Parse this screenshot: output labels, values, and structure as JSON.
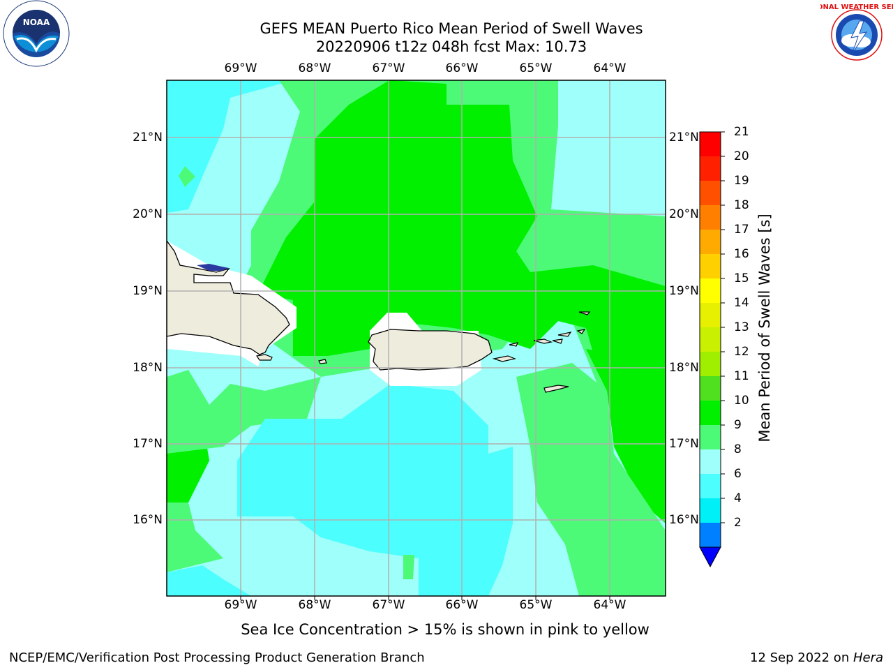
{
  "header": {
    "title_line1": "GEFS MEAN Puerto Rico Mean Period of Swell Waves",
    "title_line2": "20220906 t12z 048h fcst   Max: 10.73"
  },
  "logos": {
    "left": {
      "icon": "noaa-logo",
      "text": "NOAA"
    },
    "right": {
      "icon": "nws-logo",
      "text": "NATIONAL WEATHER SERVICE"
    }
  },
  "map": {
    "longitudes": [
      "69°W",
      "68°W",
      "67°W",
      "66°W",
      "65°W",
      "64°W"
    ],
    "latitudes": [
      "21°N",
      "20°N",
      "19°N",
      "18°N",
      "17°N",
      "16°N"
    ],
    "land_color": "#eeecdc",
    "grid_color": "#b0b0b0"
  },
  "colorbar": {
    "title": "Mean Period of Swell Waves [s]",
    "ticks": [
      "21",
      "20",
      "19",
      "18",
      "17",
      "16",
      "15",
      "14",
      "13",
      "12",
      "11",
      "10",
      "9",
      "8",
      "6",
      "4",
      "2"
    ],
    "levels": [
      {
        "color": "#ff0000"
      },
      {
        "color": "#ff2000"
      },
      {
        "color": "#ff5000"
      },
      {
        "color": "#ff8000"
      },
      {
        "color": "#ffaa00"
      },
      {
        "color": "#ffd000"
      },
      {
        "color": "#ffff00"
      },
      {
        "color": "#e6f000"
      },
      {
        "color": "#c8f000"
      },
      {
        "color": "#a0ee00"
      },
      {
        "color": "#50e020"
      },
      {
        "color": "#00f000"
      },
      {
        "color": "#4dfa78"
      },
      {
        "color": "#9ffffa"
      },
      {
        "color": "#4cfefe"
      },
      {
        "color": "#00f0f8"
      },
      {
        "color": "#0080ff"
      }
    ],
    "extend_color": "#0000ff"
  },
  "note": "Sea Ice Concentration > 15% is shown in pink to yellow",
  "footer": {
    "left": "NCEP/EMC/Verification Post Processing Product Generation Branch",
    "right_prefix": "12 Sep 2022 on ",
    "right_machine": "Hera"
  }
}
